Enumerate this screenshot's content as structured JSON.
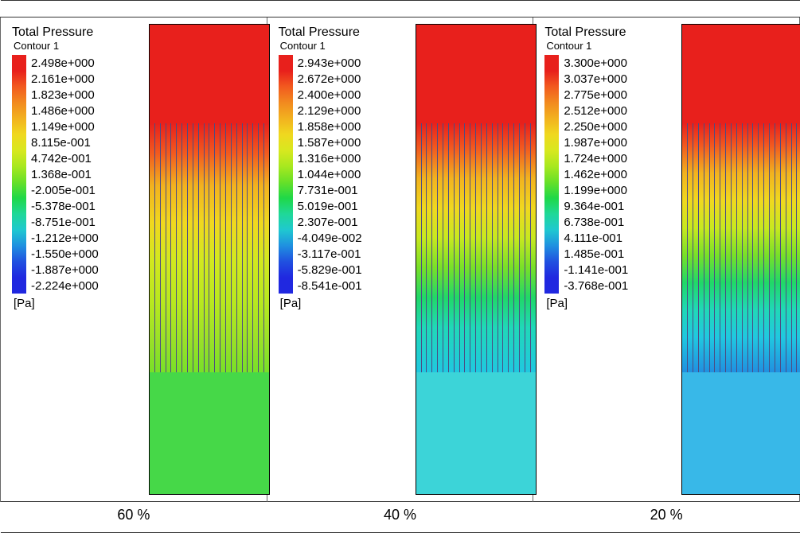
{
  "panels": [
    {
      "caption": "60  %",
      "title": "Total Pressure",
      "subtitle": "Contour 1",
      "unit": "[Pa]",
      "legend_values": [
        "2.498e+000",
        "2.161e+000",
        "1.823e+000",
        "1.486e+000",
        "1.149e+000",
        "8.115e-001",
        "4.742e-001",
        "1.368e-001",
        "-2.005e-001",
        "-5.378e-001",
        "-8.751e-001",
        "-1.212e+000",
        "-1.550e+000",
        "-1.887e+000",
        "-2.224e+000"
      ],
      "legend_colors": [
        "#e8201c",
        "#f25a1f",
        "#f28a1f",
        "#f2b21f",
        "#f0d81f",
        "#d8e81f",
        "#a8e81f",
        "#68e028",
        "#1fd848",
        "#1fd898",
        "#1fc8d0",
        "#1f90e0",
        "#2050e0",
        "#2028e0"
      ],
      "top_block_color": "#e8201c",
      "channel_gradient": [
        "#e8201c 0%",
        "#f25a1f 12%",
        "#f2b21f 25%",
        "#f0d81f 40%",
        "#d2e81f 55%",
        "#b8e81f 72%",
        "#98e028 88%",
        "#78e028 100%"
      ],
      "bottom_block_color": "#46d848",
      "channel_count": 22
    },
    {
      "caption": "40  %",
      "title": "Total Pressure",
      "subtitle": "Contour 1",
      "unit": "[Pa]",
      "legend_values": [
        "2.943e+000",
        "2.672e+000",
        "2.400e+000",
        "2.129e+000",
        "1.858e+000",
        "1.587e+000",
        "1.316e+000",
        "1.044e+000",
        "7.731e-001",
        "5.019e-001",
        "2.307e-001",
        "-4.049e-002",
        "-3.117e-001",
        "-5.829e-001",
        "-8.541e-001"
      ],
      "legend_colors": [
        "#e8201c",
        "#f25a1f",
        "#f28a1f",
        "#f2b21f",
        "#f0d81f",
        "#d8e81f",
        "#a8e81f",
        "#68e028",
        "#1fd848",
        "#1fd898",
        "#1fc8d0",
        "#1f90e0",
        "#2050e0",
        "#2028e0"
      ],
      "top_block_color": "#e8201c",
      "channel_gradient": [
        "#e8201c 0%",
        "#f25a1f 10%",
        "#f2b21f 22%",
        "#f0d81f 34%",
        "#c8e81f 46%",
        "#78e028 58%",
        "#20d868 70%",
        "#20d8b8 82%",
        "#20c8e0 100%"
      ],
      "bottom_block_color": "#3cd4d8",
      "channel_count": 22
    },
    {
      "caption": "20  %",
      "title": "Total Pressure",
      "subtitle": "Contour 1",
      "unit": "[Pa]",
      "legend_values": [
        "3.300e+000",
        "3.037e+000",
        "2.775e+000",
        "2.512e+000",
        "2.250e+000",
        "1.987e+000",
        "1.724e+000",
        "1.462e+000",
        "1.199e+000",
        "9.364e-001",
        "6.738e-001",
        "4.111e-001",
        "1.485e-001",
        "-1.141e-001",
        "-3.768e-001"
      ],
      "legend_colors": [
        "#e8201c",
        "#f25a1f",
        "#f28a1f",
        "#f2b21f",
        "#f0d81f",
        "#d8e81f",
        "#a8e81f",
        "#68e028",
        "#1fd848",
        "#1fd898",
        "#1fc8d0",
        "#1f90e0",
        "#2050e0",
        "#2028e0"
      ],
      "top_block_color": "#e8201c",
      "channel_gradient": [
        "#e8201c 0%",
        "#f25a1f 9%",
        "#f2b21f 20%",
        "#f0d81f 31%",
        "#c8e81f 42%",
        "#78e028 53%",
        "#20d868 64%",
        "#20d8b8 75%",
        "#20c8e0 86%",
        "#2090e0 100%"
      ],
      "bottom_block_color": "#38b8e8",
      "channel_count": 22
    }
  ]
}
